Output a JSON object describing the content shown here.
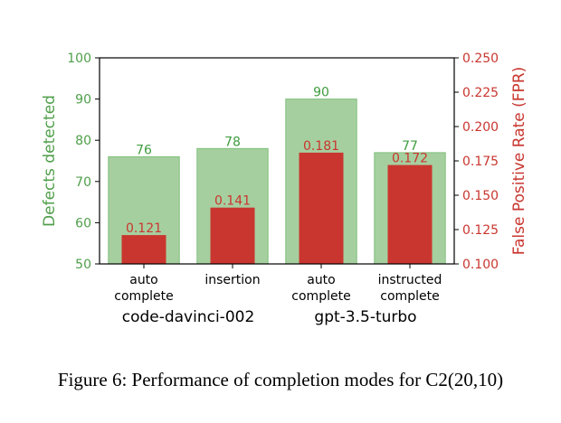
{
  "chart_data": {
    "type": "bar",
    "categories": [
      {
        "line1": "auto",
        "line2": "complete"
      },
      {
        "line1": "insertion",
        "line2": ""
      },
      {
        "line1": "auto",
        "line2": "complete"
      },
      {
        "line1": "instructed",
        "line2": "complete"
      }
    ],
    "groups": [
      {
        "label": "code-davinci-002",
        "categories": [
          0,
          1
        ]
      },
      {
        "label": "gpt-3.5-turbo",
        "categories": [
          2,
          3
        ]
      }
    ],
    "series": [
      {
        "axis": "left",
        "color": "#a6cfa0",
        "edge": "#7fbf7b",
        "label_color": "#3f9c3f",
        "values": [
          76,
          78,
          90,
          77
        ],
        "labels": [
          "76",
          "78",
          "90",
          "77"
        ]
      },
      {
        "axis": "right",
        "color": "#c9362f",
        "label_color": "#c9362f",
        "values": [
          0.121,
          0.141,
          0.181,
          0.172
        ],
        "labels": [
          "0.121",
          "0.141",
          "0.181",
          "0.172"
        ]
      }
    ],
    "ylabel": "Defects detected",
    "ylabel_color": "#4f9f4a",
    "ylim": [
      50,
      100
    ],
    "yticks": [
      50,
      60,
      70,
      80,
      90,
      100
    ],
    "y2label": "False Positive Rate (FPR)",
    "y2label_color": "#c9362f",
    "y2lim": [
      0.1,
      0.25
    ],
    "y2ticks": [
      "0.100",
      "0.125",
      "0.150",
      "0.175",
      "0.200",
      "0.225",
      "0.250"
    ],
    "grid": false
  },
  "caption": "Figure 6: Performance of completion modes for C2(20,10)"
}
